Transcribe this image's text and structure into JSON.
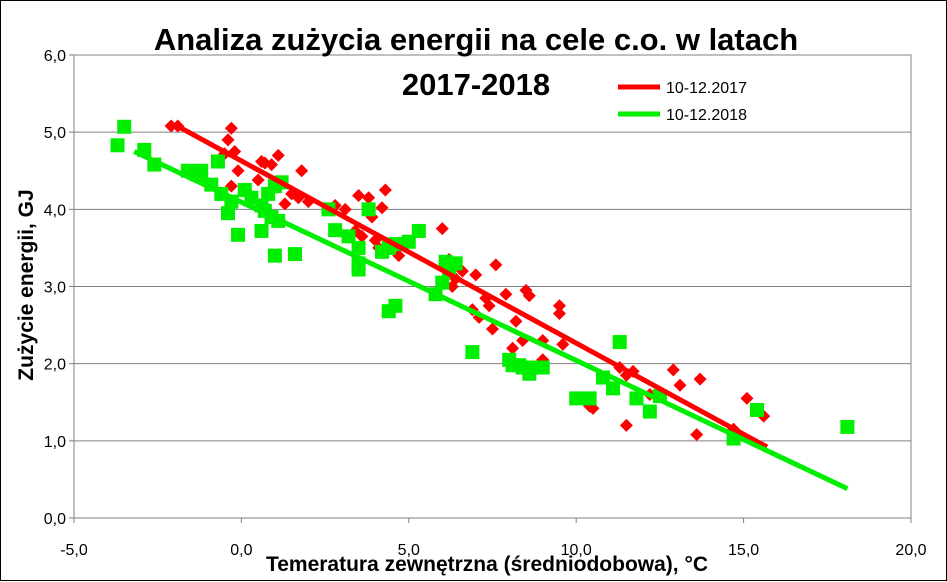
{
  "chart_data": {
    "type": "scatter",
    "title_line1": "Analiza zużycia energii na cele c.o. w latach",
    "title_line2": "2017-2018",
    "xlabel": "Temeratura zewnętrzna (średniodobowa), °C",
    "ylabel": "Zużycie energii, GJ",
    "xlim": [
      -5,
      20
    ],
    "ylim": [
      0,
      6
    ],
    "x_ticks": [
      "-5,0",
      "0,0",
      "5,0",
      "10,0",
      "15,0",
      "20,0"
    ],
    "y_ticks": [
      "0,0",
      "1,0",
      "2,0",
      "3,0",
      "4,0",
      "5,0",
      "6,0"
    ],
    "grid": true,
    "legend_position": "top-right",
    "series": [
      {
        "name": "10-12.2017",
        "color": "#ff0000",
        "marker": "diamond",
        "trend": [
          [
            -2.0,
            5.1
          ],
          [
            15.7,
            0.92
          ]
        ],
        "points": [
          [
            -2.1,
            5.08
          ],
          [
            -1.9,
            5.08
          ],
          [
            -0.3,
            5.05
          ],
          [
            -0.4,
            4.9
          ],
          [
            -0.2,
            4.75
          ],
          [
            -0.5,
            4.72
          ],
          [
            0.6,
            4.62
          ],
          [
            0.7,
            4.6
          ],
          [
            0.9,
            4.58
          ],
          [
            1.1,
            4.7
          ],
          [
            -0.1,
            4.5
          ],
          [
            1.8,
            4.5
          ],
          [
            0.5,
            4.38
          ],
          [
            -0.3,
            4.3
          ],
          [
            1.5,
            4.2
          ],
          [
            1.7,
            4.15
          ],
          [
            1.3,
            4.07
          ],
          [
            2.0,
            4.1
          ],
          [
            2.8,
            4.05
          ],
          [
            3.1,
            4.0
          ],
          [
            3.5,
            4.18
          ],
          [
            3.8,
            4.15
          ],
          [
            4.3,
            4.25
          ],
          [
            4.2,
            4.02
          ],
          [
            3.9,
            3.9
          ],
          [
            3.4,
            3.72
          ],
          [
            3.6,
            3.65
          ],
          [
            4.0,
            3.6
          ],
          [
            4.1,
            3.5
          ],
          [
            4.7,
            3.4
          ],
          [
            6.0,
            3.75
          ],
          [
            6.2,
            3.35
          ],
          [
            6.6,
            3.2
          ],
          [
            6.4,
            3.1
          ],
          [
            7.0,
            3.15
          ],
          [
            7.6,
            3.28
          ],
          [
            6.3,
            3.0
          ],
          [
            7.3,
            2.85
          ],
          [
            7.4,
            2.75
          ],
          [
            7.1,
            2.6
          ],
          [
            6.9,
            2.7
          ],
          [
            7.5,
            2.45
          ],
          [
            7.9,
            2.9
          ],
          [
            8.5,
            2.95
          ],
          [
            8.6,
            2.88
          ],
          [
            8.2,
            2.55
          ],
          [
            8.4,
            2.3
          ],
          [
            8.1,
            2.2
          ],
          [
            9.0,
            2.3
          ],
          [
            9.5,
            2.75
          ],
          [
            9.5,
            2.65
          ],
          [
            9.6,
            2.25
          ],
          [
            10.4,
            1.45
          ],
          [
            10.5,
            1.42
          ],
          [
            11.3,
            1.95
          ],
          [
            11.5,
            1.85
          ],
          [
            11.7,
            1.9
          ],
          [
            11.5,
            1.2
          ],
          [
            12.2,
            1.6
          ],
          [
            12.9,
            1.92
          ],
          [
            13.1,
            1.72
          ],
          [
            13.7,
            1.8
          ],
          [
            13.6,
            1.08
          ],
          [
            14.7,
            1.15
          ],
          [
            15.1,
            1.55
          ],
          [
            15.6,
            1.32
          ],
          [
            9.0,
            2.05
          ]
        ]
      },
      {
        "name": "10-12.2018",
        "color": "#00ee00",
        "marker": "square",
        "trend": [
          [
            -3.2,
            4.75
          ],
          [
            18.1,
            0.38
          ]
        ],
        "points": [
          [
            -3.5,
            5.07
          ],
          [
            -3.7,
            4.83
          ],
          [
            -2.9,
            4.77
          ],
          [
            -2.6,
            4.58
          ],
          [
            -1.6,
            4.5
          ],
          [
            -1.3,
            4.45
          ],
          [
            -1.2,
            4.5
          ],
          [
            -0.7,
            4.62
          ],
          [
            -0.9,
            4.32
          ],
          [
            -0.6,
            4.2
          ],
          [
            -0.3,
            4.1
          ],
          [
            0.1,
            4.25
          ],
          [
            0.3,
            4.15
          ],
          [
            0.6,
            4.05
          ],
          [
            0.8,
            4.2
          ],
          [
            1.0,
            4.3
          ],
          [
            1.2,
            4.35
          ],
          [
            0.7,
            3.98
          ],
          [
            0.9,
            3.9
          ],
          [
            1.1,
            3.85
          ],
          [
            -0.4,
            3.95
          ],
          [
            -0.1,
            3.67
          ],
          [
            0.6,
            3.72
          ],
          [
            1.0,
            3.4
          ],
          [
            1.6,
            3.42
          ],
          [
            2.6,
            4.0
          ],
          [
            2.8,
            3.73
          ],
          [
            3.2,
            3.65
          ],
          [
            3.5,
            3.5
          ],
          [
            3.5,
            3.3
          ],
          [
            3.5,
            3.22
          ],
          [
            3.8,
            4.0
          ],
          [
            4.2,
            3.45
          ],
          [
            4.4,
            3.5
          ],
          [
            4.6,
            3.55
          ],
          [
            5.0,
            3.58
          ],
          [
            5.3,
            3.72
          ],
          [
            4.4,
            2.68
          ],
          [
            4.6,
            2.75
          ],
          [
            5.8,
            2.9
          ],
          [
            6.0,
            3.05
          ],
          [
            6.1,
            3.32
          ],
          [
            6.4,
            3.3
          ],
          [
            6.9,
            2.15
          ],
          [
            8.0,
            2.05
          ],
          [
            8.1,
            1.98
          ],
          [
            8.3,
            1.98
          ],
          [
            8.6,
            1.87
          ],
          [
            8.8,
            1.95
          ],
          [
            9.0,
            1.95
          ],
          [
            10.0,
            1.55
          ],
          [
            10.4,
            1.55
          ],
          [
            10.8,
            1.82
          ],
          [
            11.1,
            1.68
          ],
          [
            11.3,
            2.28
          ],
          [
            11.8,
            1.55
          ],
          [
            12.2,
            1.38
          ],
          [
            12.5,
            1.58
          ],
          [
            14.7,
            1.03
          ],
          [
            15.4,
            1.4
          ],
          [
            18.1,
            1.18
          ],
          [
            8.4,
            1.95
          ],
          [
            6.2,
            3.2
          ]
        ]
      }
    ]
  }
}
